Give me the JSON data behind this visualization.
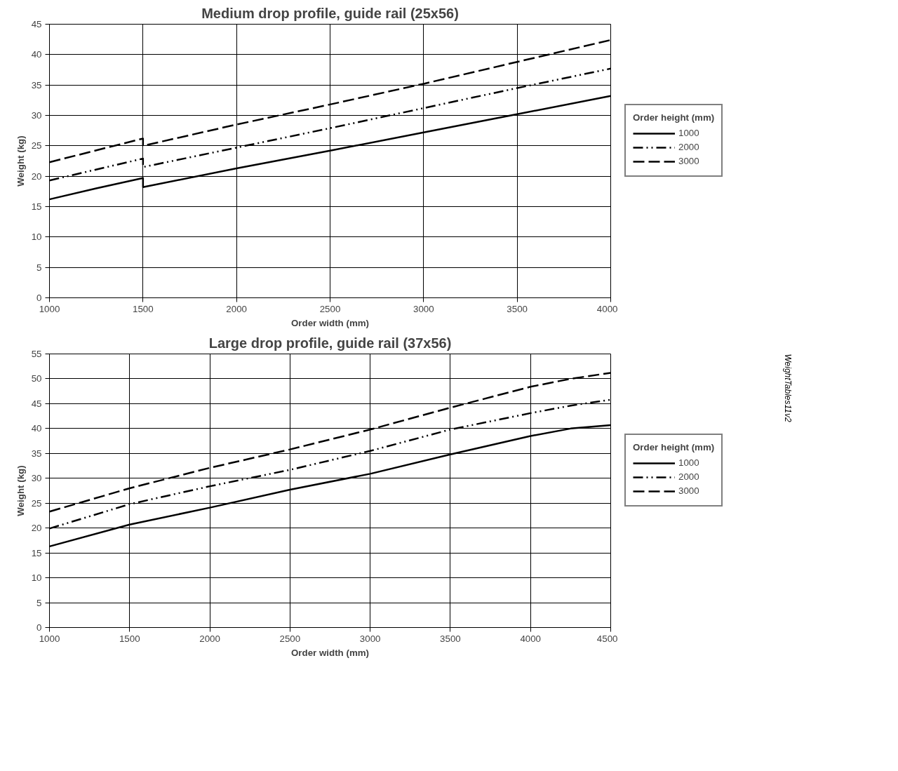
{
  "chart_data": [
    {
      "type": "line",
      "title": "Medium drop profile, guide rail (25x56)",
      "xlabel": "Order width (mm)",
      "ylabel": "Weight (kg)",
      "legend_title": "Order height (mm)",
      "legend": "right",
      "grid": true,
      "xlim": [
        1000,
        4000
      ],
      "ylim": [
        0,
        45
      ],
      "xticks": [
        1000,
        1500,
        2000,
        2500,
        3000,
        3500,
        4000
      ],
      "yticks": [
        0,
        5,
        10,
        15,
        20,
        25,
        30,
        35,
        40,
        45
      ],
      "series": [
        {
          "name": "1000",
          "color": "#000000",
          "line_style": "solid",
          "x": [
            1000,
            1250,
            1500,
            1500,
            2000,
            2500,
            3000,
            3500,
            4000
          ],
          "values": [
            16.2,
            18.0,
            19.7,
            18.2,
            21.3,
            24.2,
            27.2,
            30.2,
            33.2
          ]
        },
        {
          "name": "2000",
          "color": "#000000",
          "line_style": "dashdot",
          "x": [
            1000,
            1500,
            1500,
            2000,
            2500,
            3000,
            3500,
            4000
          ],
          "values": [
            19.3,
            22.9,
            21.5,
            24.7,
            27.9,
            31.2,
            34.5,
            37.7
          ]
        },
        {
          "name": "3000",
          "color": "#000000",
          "line_style": "dashed",
          "x": [
            1000,
            1500,
            1500,
            2000,
            2500,
            3000,
            3500,
            4000
          ],
          "values": [
            22.3,
            26.2,
            25.0,
            28.5,
            31.8,
            35.2,
            38.8,
            42.4
          ]
        }
      ]
    },
    {
      "type": "line",
      "title": "Large drop profile, guide rail (37x56)",
      "xlabel": "Order width (mm)",
      "ylabel": "Weight (kg)",
      "legend_title": "Order height (mm)",
      "legend": "right",
      "grid": true,
      "xlim": [
        1000,
        4500
      ],
      "ylim": [
        0,
        55
      ],
      "xticks": [
        1000,
        1500,
        2000,
        2500,
        3000,
        3500,
        4000,
        4500
      ],
      "yticks": [
        0,
        5,
        10,
        15,
        20,
        25,
        30,
        35,
        40,
        45,
        50,
        55
      ],
      "annotations": [
        "WeightTables11v2"
      ],
      "x": [
        1000,
        1500,
        2000,
        2500,
        3000,
        3500,
        4000,
        4250,
        4500
      ],
      "series": [
        {
          "name": "1000",
          "color": "#000000",
          "line_style": "solid",
          "values": [
            16.3,
            20.7,
            24.1,
            27.7,
            30.9,
            34.8,
            38.5,
            40.0,
            40.7
          ]
        },
        {
          "name": "2000",
          "color": "#000000",
          "line_style": "dashdot",
          "values": [
            19.9,
            24.8,
            28.4,
            31.7,
            35.5,
            39.8,
            43.1,
            44.6,
            45.8
          ]
        },
        {
          "name": "3000",
          "color": "#000000",
          "line_style": "dashed",
          "values": [
            23.3,
            28.0,
            32.1,
            35.8,
            39.8,
            44.2,
            48.4,
            50.0,
            51.2
          ]
        }
      ]
    }
  ]
}
